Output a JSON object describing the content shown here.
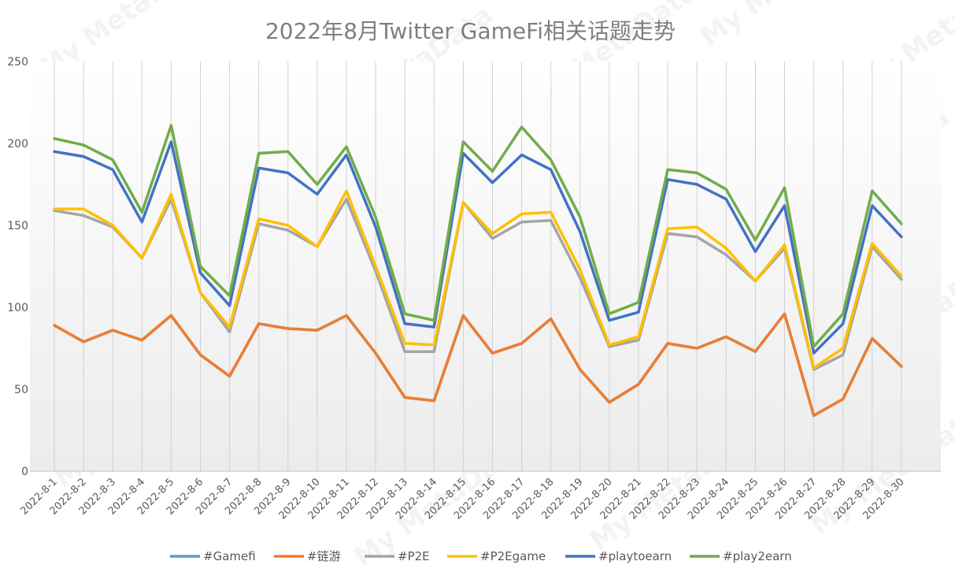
{
  "chart_data": {
    "type": "line",
    "title": "2022年8月Twitter GameFi相关话题走势",
    "xlabel": "",
    "ylabel": "",
    "ylim": [
      0,
      250
    ],
    "yticks": [
      0,
      50,
      100,
      150,
      200,
      250
    ],
    "grid": "vertical",
    "legend_position": "bottom",
    "watermark": "My MetaData",
    "categories": [
      "2022-8-1",
      "2022-8-2",
      "2022-8-3",
      "2022-8-4",
      "2022-8-5",
      "2022-8-6",
      "2022-8-7",
      "2022-8-8",
      "2022-8-9",
      "2022-8-10",
      "2022-8-11",
      "2022-8-12",
      "2022-8-13",
      "2022-8-14",
      "2022-8-15",
      "2022-8-16",
      "2022-8-17",
      "2022-8-18",
      "2022-8-19",
      "2022-8-20",
      "2022-8-21",
      "2022-8-22",
      "2022-8-23",
      "2022-8-24",
      "2022-8-25",
      "2022-8-26",
      "2022-8-27",
      "2022-8-28",
      "2022-8-29",
      "2022-8-30"
    ],
    "series": [
      {
        "name": "#Gamefi",
        "color": "#5b9bd5",
        "values": [
          89,
          79,
          86,
          80,
          95,
          71,
          58,
          90,
          87,
          86,
          95,
          72,
          45,
          43,
          95,
          72,
          78,
          93,
          62,
          42,
          53,
          78,
          75,
          82,
          73,
          96,
          34,
          44,
          81,
          64
        ]
      },
      {
        "name": "#链游",
        "color": "#ed7d31",
        "values": [
          89,
          79,
          86,
          80,
          95,
          71,
          58,
          90,
          87,
          86,
          95,
          72,
          45,
          43,
          95,
          72,
          78,
          93,
          62,
          42,
          53,
          78,
          75,
          82,
          73,
          96,
          34,
          44,
          81,
          64
        ]
      },
      {
        "name": "#P2E",
        "color": "#a5a5a5",
        "values": [
          159,
          156,
          149,
          130,
          166,
          109,
          85,
          151,
          147,
          137,
          166,
          122,
          73,
          73,
          164,
          142,
          152,
          153,
          118,
          76,
          80,
          145,
          143,
          132,
          116,
          136,
          62,
          71,
          137,
          117
        ]
      },
      {
        "name": "#P2Egame",
        "color": "#ffc000",
        "values": [
          160,
          160,
          150,
          130,
          169,
          109,
          88,
          154,
          150,
          137,
          171,
          125,
          78,
          77,
          164,
          145,
          157,
          158,
          123,
          77,
          82,
          148,
          149,
          136,
          116,
          138,
          63,
          75,
          139,
          119
        ]
      },
      {
        "name": "#playtoearn",
        "color": "#4472c4",
        "values": [
          195,
          192,
          184,
          152,
          201,
          121,
          101,
          185,
          182,
          169,
          193,
          149,
          90,
          88,
          194,
          176,
          193,
          184,
          146,
          92,
          97,
          178,
          175,
          166,
          134,
          162,
          72,
          90,
          162,
          143
        ]
      },
      {
        "name": "#play2earn",
        "color": "#70ad47",
        "values": [
          203,
          199,
          190,
          158,
          211,
          125,
          107,
          194,
          195,
          175,
          198,
          155,
          96,
          92,
          201,
          183,
          210,
          190,
          155,
          96,
          103,
          184,
          182,
          172,
          141,
          173,
          76,
          96,
          171,
          151
        ]
      }
    ]
  }
}
